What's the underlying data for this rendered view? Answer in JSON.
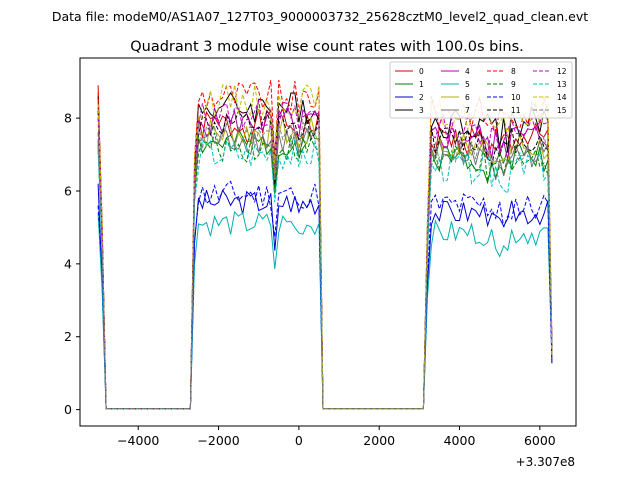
{
  "figure": {
    "suptitle": "Data file: modeM0/AS1A07_127T03_9000003732_25628cztM0_level2_quad_clean.evt"
  },
  "chart_data": {
    "type": "line",
    "title": "Quadrant 3 module wise count rates with 100.0s bins.",
    "xlabel": "",
    "ylabel": "",
    "x_offset_label": "+3.307e8",
    "xlim": [
      -5450,
      6900
    ],
    "ylim": [
      -0.45,
      9.65
    ],
    "xticks": [
      -4000,
      -2000,
      0,
      2000,
      4000,
      6000
    ],
    "xtick_labels": [
      "−4000",
      "−2000",
      "0",
      "2000",
      "4000",
      "6000"
    ],
    "yticks": [
      0,
      2,
      4,
      6,
      8
    ],
    "ytick_labels": [
      "0",
      "2",
      "4",
      "6",
      "8"
    ],
    "legend_position": "top-right",
    "legend_columns": 4,
    "segments": [
      {
        "x_start": -5000,
        "x_end": -4900,
        "step": 100,
        "gap_after_x": -4800
      },
      {
        "x_start": -2700,
        "x_end": 500,
        "step": 100,
        "gap_after_x": 600
      },
      {
        "x_start": 3100,
        "x_end": 6300,
        "step": 100,
        "gap_after_x": null
      }
    ],
    "gap_value": 0.02,
    "series": [
      {
        "name": "0",
        "color": "#d00000",
        "dash": "solid",
        "level": 7.8,
        "start": 8.9,
        "amp": 0.45,
        "seed": 1
      },
      {
        "name": "1",
        "color": "#007f00",
        "dash": "solid",
        "level": 7.3,
        "start": 7.4,
        "amp": 0.4,
        "seed": 2
      },
      {
        "name": "2",
        "color": "#0000d0",
        "dash": "solid",
        "level": 5.7,
        "start": 6.2,
        "amp": 0.35,
        "seed": 3
      },
      {
        "name": "3",
        "color": "#000000",
        "dash": "solid",
        "level": 8.3,
        "start": 8.6,
        "amp": 0.45,
        "seed": 4
      },
      {
        "name": "4",
        "color": "#b000b0",
        "dash": "solid",
        "level": 7.9,
        "start": 8.3,
        "amp": 0.4,
        "seed": 5
      },
      {
        "name": "5",
        "color": "#00b0b0",
        "dash": "solid",
        "level": 5.1,
        "start": 5.4,
        "amp": 0.35,
        "seed": 6
      },
      {
        "name": "6",
        "color": "#b0b000",
        "dash": "solid",
        "level": 7.6,
        "start": 7.3,
        "amp": 0.45,
        "seed": 7
      },
      {
        "name": "7",
        "color": "#707070",
        "dash": "solid",
        "level": 7.4,
        "start": 7.2,
        "amp": 0.4,
        "seed": 8
      },
      {
        "name": "8",
        "color": "#ff0000",
        "dash": "dashed",
        "level": 8.6,
        "start": 8.7,
        "amp": 0.45,
        "seed": 9
      },
      {
        "name": "9",
        "color": "#008000",
        "dash": "dashed",
        "level": 7.2,
        "start": 7.6,
        "amp": 0.4,
        "seed": 10
      },
      {
        "name": "10",
        "color": "#0000ff",
        "dash": "dashed",
        "level": 5.9,
        "start": 5.6,
        "amp": 0.4,
        "seed": 11
      },
      {
        "name": "11",
        "color": "#000000",
        "dash": "dashed",
        "level": 7.8,
        "start": 8.2,
        "amp": 0.4,
        "seed": 12
      },
      {
        "name": "12",
        "color": "#c000c0",
        "dash": "dashed",
        "level": 8.1,
        "start": 8.0,
        "amp": 0.4,
        "seed": 13
      },
      {
        "name": "13",
        "color": "#00c0c0",
        "dash": "dashed",
        "level": 7.0,
        "start": 7.1,
        "amp": 0.45,
        "seed": 14
      },
      {
        "name": "14",
        "color": "#c0c000",
        "dash": "dashed",
        "level": 8.5,
        "start": 8.4,
        "amp": 0.45,
        "seed": 15
      },
      {
        "name": "15",
        "color": "#808080",
        "dash": "dashed",
        "level": 7.5,
        "start": 7.4,
        "amp": 0.4,
        "seed": 16
      }
    ]
  }
}
